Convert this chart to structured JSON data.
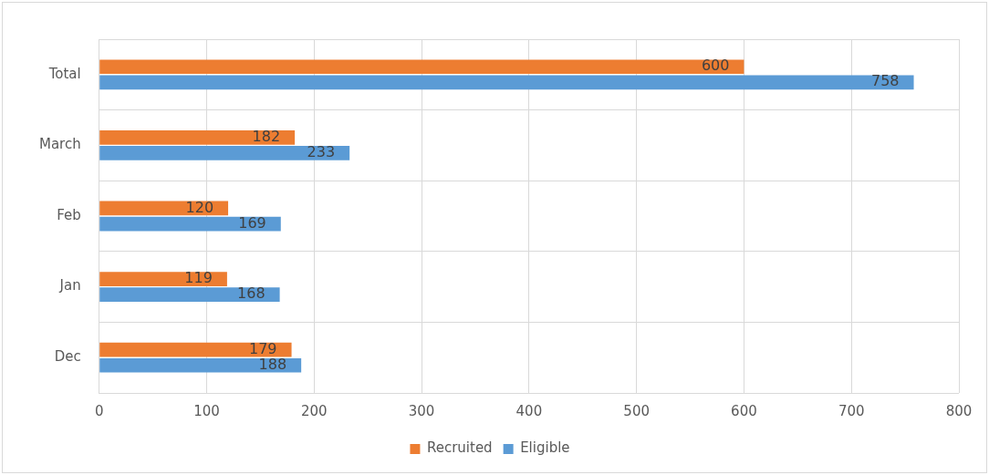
{
  "chart_data": {
    "type": "bar",
    "orientation": "horizontal",
    "categories": [
      "Total",
      "March",
      "Feb",
      "Jan",
      "Dec"
    ],
    "series": [
      {
        "name": "Recruited",
        "color": "#ed7d31",
        "values": [
          600,
          182,
          120,
          119,
          179
        ]
      },
      {
        "name": "Eligible",
        "color": "#5b9bd5",
        "values": [
          758,
          233,
          169,
          168,
          188
        ]
      }
    ],
    "xlim": [
      0,
      800
    ],
    "xticks": [
      0,
      100,
      200,
      300,
      400,
      500,
      600,
      700,
      800
    ],
    "grid": true,
    "legend": "bottom",
    "data_labels": true
  }
}
